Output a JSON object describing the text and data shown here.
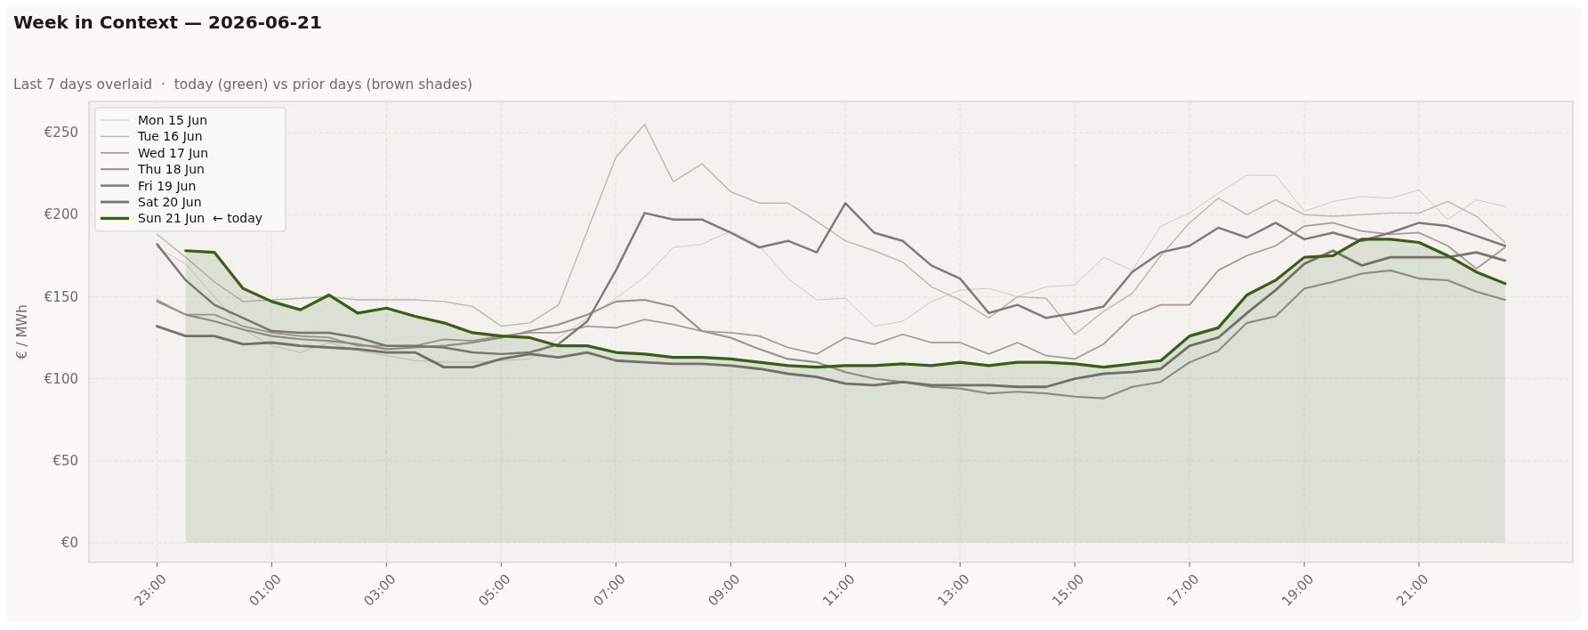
{
  "chart_data": {
    "type": "line",
    "title": "Week in Context — 2026-06-21",
    "subtitle": "Last 7 days overlaid  ·  today (green) vs prior days (brown shades)",
    "ylabel": "€ / MWh",
    "categories": [
      "23:00",
      null,
      null,
      null,
      "01:00",
      null,
      null,
      null,
      "03:00",
      null,
      null,
      null,
      "05:00",
      null,
      null,
      null,
      "07:00",
      null,
      null,
      null,
      "09:00",
      null,
      null,
      null,
      "11:00",
      null,
      null,
      null,
      "13:00",
      null,
      null,
      null,
      "15:00",
      null,
      null,
      null,
      "17:00",
      null,
      null,
      null,
      "19:00",
      null,
      null,
      null,
      "21:00",
      null,
      null,
      null
    ],
    "ylim": [
      -12,
      269
    ],
    "yticks": [
      {
        "value": 0,
        "label": "€0"
      },
      {
        "value": 50,
        "label": "€50"
      },
      {
        "value": 100,
        "label": "€100"
      },
      {
        "value": 150,
        "label": "€150"
      },
      {
        "value": 200,
        "label": "€200"
      },
      {
        "value": 250,
        "label": "€250"
      }
    ],
    "grid": true,
    "legend": "top left",
    "series": [
      {
        "name": "Mon 15 Jun",
        "color": "#cfcbc6",
        "values": [
          180,
          170,
          150,
          130,
          120,
          116,
          122,
          117,
          114,
          111,
          110,
          110,
          111,
          112,
          125,
          137,
          149,
          162,
          180,
          182,
          190,
          181,
          161,
          148,
          149,
          132,
          135,
          147,
          154,
          155,
          150,
          156,
          157,
          174,
          166,
          193,
          201,
          213,
          224,
          224,
          202,
          208,
          211,
          210,
          215,
          197,
          209,
          205
        ]
      },
      {
        "name": "Tue 16 Jun",
        "color": "#bdb6b0",
        "values": [
          188,
          174,
          159,
          147,
          148,
          149,
          150,
          148,
          148,
          148,
          147,
          144,
          132,
          134,
          145,
          190,
          235,
          255,
          220,
          231,
          214,
          207,
          207,
          196,
          184,
          178,
          171,
          156,
          148,
          137,
          150,
          149,
          127,
          141,
          152,
          175,
          195,
          210,
          200,
          209,
          200,
          199,
          200,
          201,
          201,
          208,
          199,
          183
        ]
      },
      {
        "name": "Wed 17 Jun",
        "color": "#a59a96",
        "values": [
          148,
          139,
          139,
          132,
          128,
          126,
          125,
          120,
          120,
          120,
          124,
          123,
          126,
          128,
          128,
          132,
          131,
          136,
          133,
          129,
          128,
          126,
          119,
          115,
          125,
          121,
          127,
          122,
          122,
          115,
          122,
          114,
          112,
          121,
          138,
          145,
          145,
          166,
          175,
          181,
          193,
          195,
          190,
          188,
          189,
          181,
          167,
          180
        ]
      },
      {
        "name": "Thu 18 Jun",
        "color": "#99928d",
        "values": [
          147,
          139,
          135,
          130,
          126,
          124,
          123,
          121,
          118,
          119,
          120,
          122,
          125,
          129,
          133,
          139,
          147,
          148,
          144,
          129,
          125,
          118,
          112,
          110,
          104,
          100,
          98,
          95,
          94,
          91,
          92,
          91,
          89,
          88,
          95,
          98,
          110,
          117,
          134,
          138,
          155,
          159,
          164,
          166,
          161,
          160,
          153,
          148
        ]
      },
      {
        "name": "Fri 19 Jun",
        "color": "#7f7a77",
        "values": [
          182,
          160,
          145,
          137,
          129,
          128,
          128,
          125,
          120,
          120,
          119,
          116,
          115,
          116,
          121,
          135,
          166,
          201,
          197,
          197,
          189,
          180,
          184,
          177,
          207,
          189,
          184,
          169,
          161,
          140,
          145,
          137,
          140,
          144,
          165,
          177,
          181,
          192,
          186,
          195,
          185,
          189,
          184,
          189,
          195,
          193,
          187,
          181
        ]
      },
      {
        "name": "Sat 20 Jun",
        "color": "#7a7470",
        "values": [
          132,
          126,
          126,
          121,
          122,
          120,
          119,
          118,
          116,
          116,
          107,
          107,
          112,
          115,
          113,
          116,
          111,
          110,
          109,
          109,
          108,
          106,
          103,
          101,
          97,
          96,
          98,
          96,
          96,
          96,
          95,
          95,
          100,
          103,
          104,
          106,
          120,
          125,
          140,
          154,
          170,
          178,
          169,
          174,
          174,
          174,
          177,
          172
        ]
      },
      {
        "name": "Sun 21 Jun  ← today",
        "type": "area",
        "color": "#3a5e1a",
        "values": [
          null,
          178,
          177,
          155,
          147,
          142,
          151,
          140,
          143,
          138,
          134,
          128,
          126,
          125,
          120,
          120,
          116,
          115,
          113,
          113,
          112,
          110,
          108,
          107,
          108,
          108,
          109,
          108,
          110,
          108,
          110,
          110,
          109,
          107,
          109,
          111,
          126,
          131,
          151,
          160,
          174,
          175,
          185,
          185,
          183,
          175,
          165,
          158
        ]
      }
    ]
  }
}
